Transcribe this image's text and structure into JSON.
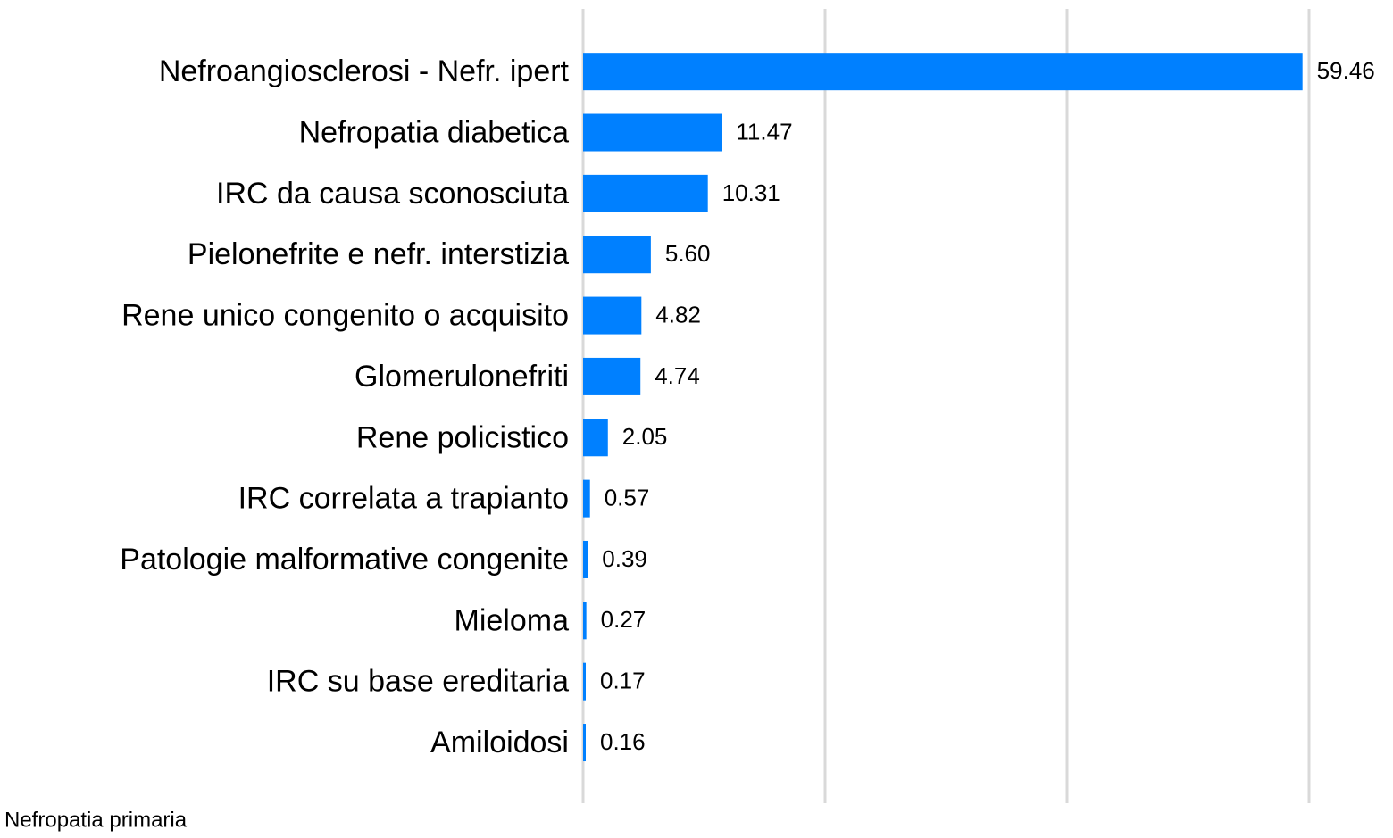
{
  "chart_data": {
    "type": "hbar",
    "categories": [
      "Nefroangiosclerosi - Nefr. ipert",
      "Nefropatia diabetica",
      "IRC da causa sconosciuta",
      "Pielonefrite e nefr. interstizia",
      "Rene unico congenito o acquisito",
      "Glomerulonefriti",
      "Rene policistico",
      "IRC correlata a trapianto",
      "Patologie malformative congenite",
      "Mieloma",
      "IRC su base ereditaria",
      "Amiloidosi"
    ],
    "values": [
      59.46,
      11.47,
      10.31,
      5.6,
      4.82,
      4.74,
      2.05,
      0.57,
      0.39,
      0.27,
      0.17,
      0.16
    ],
    "value_labels": [
      "59.46",
      "11.47",
      "10.31",
      "5.60",
      "4.82",
      "4.74",
      "2.05",
      "0.57",
      "0.39",
      "0.27",
      "0.17",
      "0.16"
    ],
    "color": "#0080ff",
    "xlim": [
      0,
      60
    ],
    "xticks": [
      0,
      20,
      40,
      60
    ],
    "grid": true,
    "category_axis_label": "Nefropatia primaria"
  }
}
